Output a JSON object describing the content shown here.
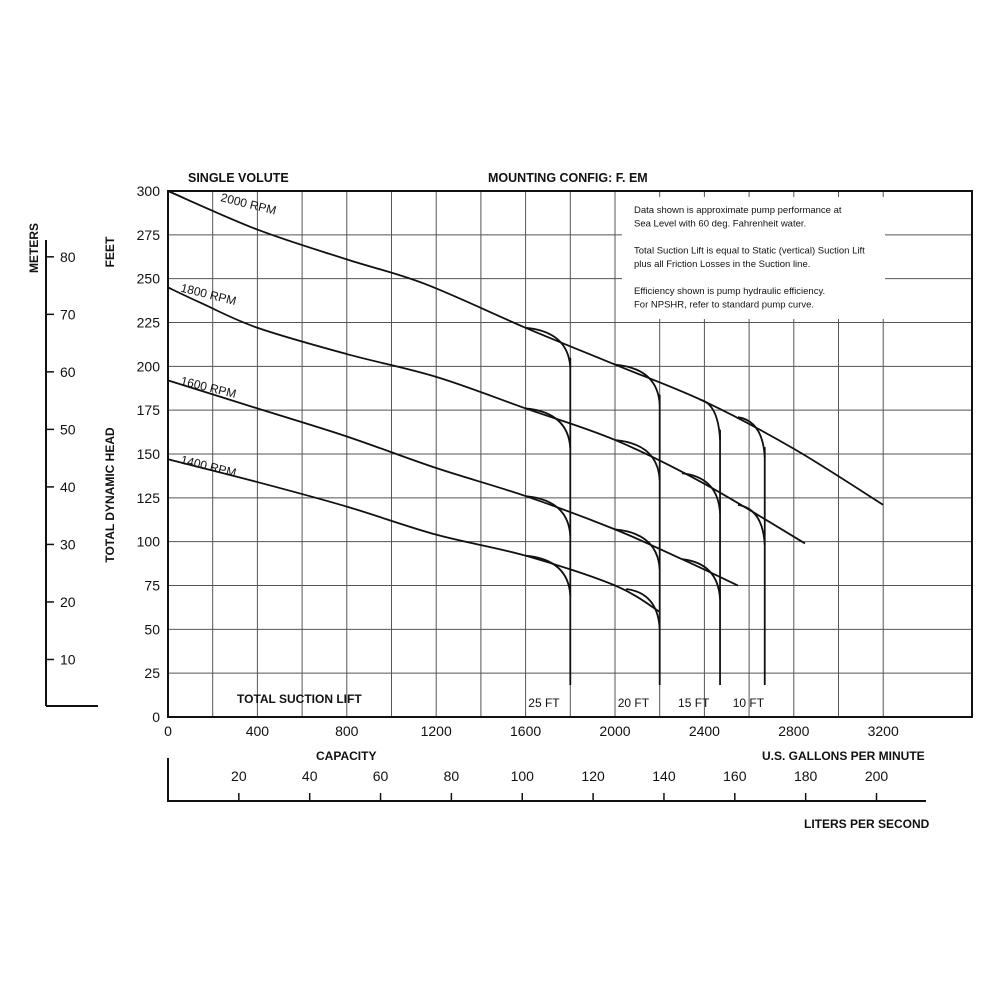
{
  "chart_data": {
    "type": "line",
    "header_left": "SINGLE VOLUTE",
    "header_center": "MOUNTING CONFIG:  F.   EM",
    "notes": [
      "Data shown is approximate pump performance at",
      "Sea Level with 60 deg. Fahrenheit water.",
      "",
      "Total Suction Lift is equal to Static (vertical) Suction Lift",
      "plus all Friction Losses in the Suction line.",
      "",
      "Efficiency shown is pump hydraulic efficiency.",
      "For NPSHR, refer to standard pump curve."
    ],
    "y_label_feet": "FEET",
    "y_label_meters": "METERS",
    "y_label_title": "TOTAL DYNAMIC HEAD",
    "x_label_capacity": "CAPACITY",
    "x_label_gpm": "U.S. GALLONS PER MINUTE",
    "x_label_lps": "LITERS PER SECOND",
    "xlim": [
      0,
      3400
    ],
    "ylim": [
      0,
      300
    ],
    "x_ticks_gpm": [
      "0",
      "400",
      "800",
      "1200",
      "1600",
      "2000",
      "2400",
      "2800",
      "3200"
    ],
    "y_ticks_feet": [
      "0",
      "25",
      "50",
      "75",
      "100",
      "125",
      "150",
      "175",
      "200",
      "225",
      "250",
      "275",
      "300"
    ],
    "meter_ticks": [
      "10",
      "20",
      "30",
      "40",
      "50",
      "60",
      "70",
      "80"
    ],
    "lps_ticks": [
      "20",
      "40",
      "60",
      "80",
      "100",
      "120",
      "140",
      "160",
      "180",
      "200"
    ],
    "series": [
      {
        "name": "2000 RPM",
        "x": [
          0,
          400,
          800,
          1150,
          1600,
          2000,
          2400,
          2800,
          3200
        ],
        "y": [
          300,
          278,
          261,
          247,
          222,
          201,
          180,
          153,
          121
        ]
      },
      {
        "name": "1800 RPM",
        "x": [
          0,
          150,
          400,
          800,
          1200,
          1600,
          2000,
          2400,
          2850
        ],
        "y": [
          245,
          236,
          222,
          207,
          194,
          176,
          158,
          133,
          99
        ]
      },
      {
        "name": "1600 RPM",
        "x": [
          0,
          400,
          800,
          1200,
          1600,
          2000,
          2300,
          2550
        ],
        "y": [
          192,
          176,
          160,
          142,
          126,
          107,
          90,
          75
        ]
      },
      {
        "name": "1400 RPM",
        "x": [
          0,
          400,
          800,
          1200,
          1600,
          2000,
          2200
        ],
        "y": [
          147,
          134,
          120,
          104,
          92,
          75,
          60
        ]
      }
    ],
    "suction_lift_title": "TOTAL SUCTION LIFT",
    "suction_lift": [
      {
        "label": "25 FT",
        "x": 1800,
        "branches": [
          [
            1600,
            222
          ],
          [
            1600,
            176
          ],
          [
            1600,
            126
          ],
          [
            1600,
            92
          ]
        ]
      },
      {
        "label": "20 FT",
        "x": 2200,
        "branches": [
          [
            2000,
            201
          ],
          [
            2000,
            158
          ],
          [
            2000,
            107
          ],
          [
            2050,
            73
          ]
        ]
      },
      {
        "label": "15 FT",
        "x": 2470,
        "branches": [
          [
            2380,
            181
          ],
          [
            2300,
            139
          ],
          [
            2300,
            90
          ]
        ]
      },
      {
        "label": "10 FT",
        "x": 2670,
        "branches": [
          [
            2550,
            171
          ],
          [
            2550,
            121
          ]
        ]
      }
    ]
  }
}
